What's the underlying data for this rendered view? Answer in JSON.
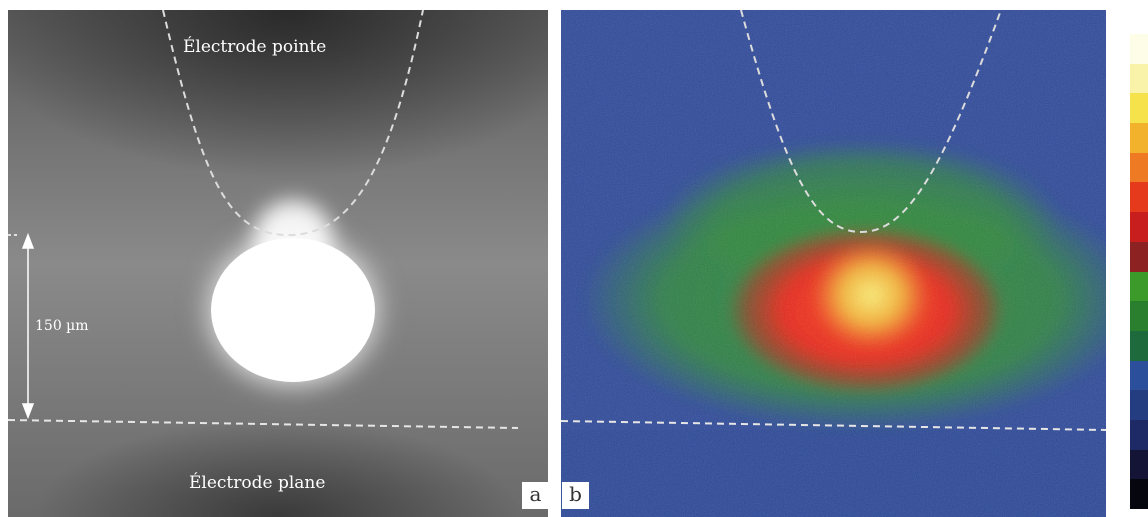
{
  "panel_a": {
    "letter": "a",
    "tip_electrode_label": "Électrode pointe",
    "plane_electrode_label": "Électrode plane",
    "gap_distance_label": "150 µm"
  },
  "panel_b": {
    "letter": "b"
  },
  "colors": {
    "background": "#ffffff",
    "grayscale_glow": "#ffffff",
    "false_color_background": "#2f4a9a",
    "false_color_mid": "#2f8a3a",
    "false_color_high": "#e82a1a",
    "false_color_peak": "#f6e24a",
    "dashed_outline": "#e6e6e6"
  },
  "colorbar": {
    "colors": [
      "#fdfde8",
      "#f8f3a8",
      "#f6e24a",
      "#f3b22c",
      "#ee7a24",
      "#e63a1c",
      "#c81e1e",
      "#8c2222",
      "#3c9a2a",
      "#2a7f2e",
      "#1f6a3c",
      "#2b4f9a",
      "#243c80",
      "#1e2a66",
      "#141436",
      "#06060e"
    ]
  }
}
